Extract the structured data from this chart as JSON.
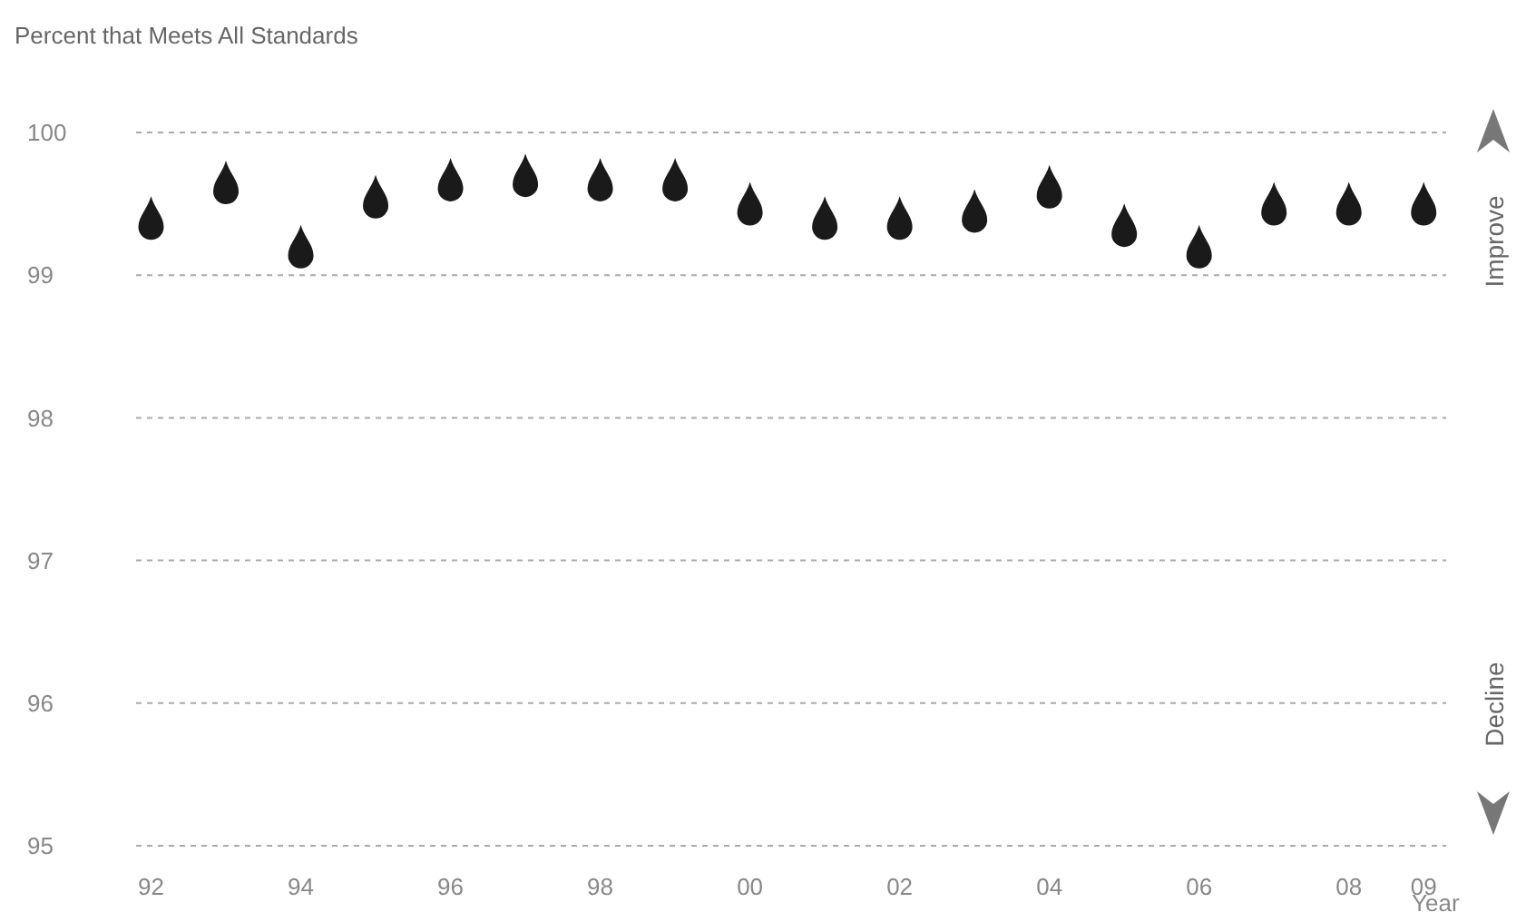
{
  "chart_data": {
    "type": "scatter",
    "ylabel": "Percent that Meets All Standards",
    "xlabel": "Year",
    "x": [
      1992,
      1993,
      1994,
      1995,
      1996,
      1997,
      1998,
      1999,
      2000,
      2001,
      2002,
      2003,
      2004,
      2005,
      2006,
      2007,
      2008,
      2009
    ],
    "series": [
      {
        "color": "#1a1a1a",
        "values": [
          99.4,
          99.65,
          99.2,
          99.55,
          99.67,
          99.7,
          99.67,
          99.67,
          99.5,
          99.4,
          99.4,
          99.45,
          99.62,
          99.35,
          99.2,
          99.5,
          99.5,
          99.5
        ]
      }
    ],
    "xlim": [
      1991.8,
      2009.3
    ],
    "xticks": [
      {
        "value": 1992,
        "label": "92"
      },
      {
        "value": 1994,
        "label": "94"
      },
      {
        "value": 1996,
        "label": "96"
      },
      {
        "value": 1998,
        "label": "98"
      },
      {
        "value": 2000,
        "label": "00"
      },
      {
        "value": 2002,
        "label": "02"
      },
      {
        "value": 2004,
        "label": "04"
      },
      {
        "value": 2006,
        "label": "06"
      },
      {
        "value": 2008,
        "label": "08"
      },
      {
        "value": 2009,
        "label": "09"
      }
    ],
    "ylim": [
      95,
      100
    ],
    "yticks": [
      95,
      96,
      97,
      98,
      99,
      100
    ],
    "grid": "y",
    "line_style": "dashed",
    "annotations": [
      "Improve",
      "Decline"
    ]
  }
}
